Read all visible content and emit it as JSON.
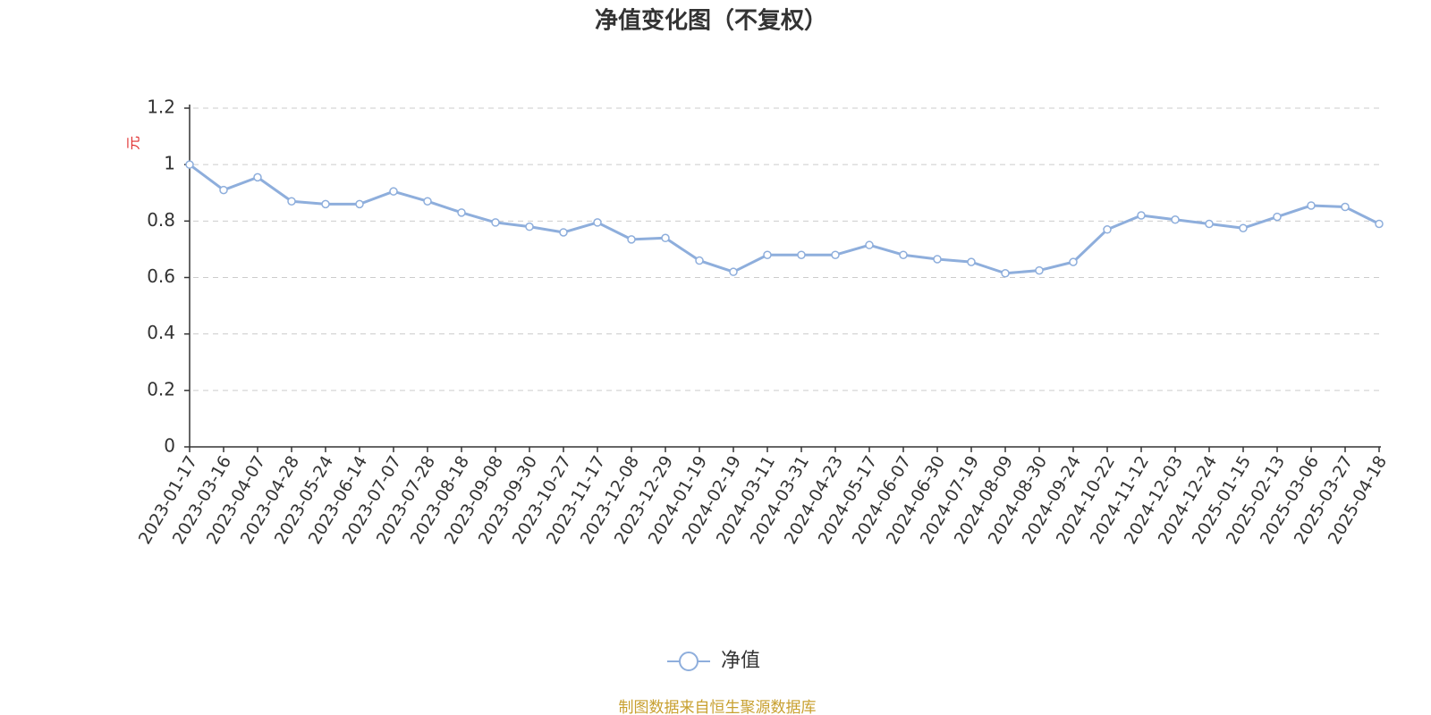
{
  "chart_data": {
    "type": "line",
    "title": "净值变化图（不复权）",
    "y_label": "元",
    "source": "制图数据来自恒生聚源数据库",
    "categories": [
      "2023-01-17",
      "2023-03-16",
      "2023-04-07",
      "2023-04-28",
      "2023-05-24",
      "2023-06-14",
      "2023-07-07",
      "2023-07-28",
      "2023-08-18",
      "2023-09-08",
      "2023-09-30",
      "2023-10-27",
      "2023-11-17",
      "2023-12-08",
      "2023-12-29",
      "2024-01-19",
      "2024-02-19",
      "2024-03-11",
      "2024-03-31",
      "2024-04-23",
      "2024-05-17",
      "2024-06-07",
      "2024-06-30",
      "2024-07-19",
      "2024-08-09",
      "2024-08-30",
      "2024-09-24",
      "2024-10-22",
      "2024-11-12",
      "2024-12-03",
      "2024-12-24",
      "2025-01-15",
      "2025-02-13",
      "2025-03-06",
      "2025-03-27",
      "2025-04-18"
    ],
    "series": [
      {
        "name": "净值",
        "color": "#8eaedc",
        "values": [
          1.0,
          0.91,
          0.955,
          0.87,
          0.86,
          0.86,
          0.905,
          0.87,
          0.83,
          0.795,
          0.78,
          0.76,
          0.795,
          0.735,
          0.74,
          0.66,
          0.62,
          0.68,
          0.68,
          0.68,
          0.715,
          0.68,
          0.665,
          0.655,
          0.615,
          0.625,
          0.655,
          0.77,
          0.82,
          0.805,
          0.79,
          0.775,
          0.815,
          0.855,
          0.85,
          0.79
        ]
      }
    ],
    "ylim": [
      0,
      1.2
    ],
    "yticks": [
      0,
      0.2,
      0.4,
      0.6,
      0.8,
      1,
      1.2
    ],
    "grid": true
  }
}
